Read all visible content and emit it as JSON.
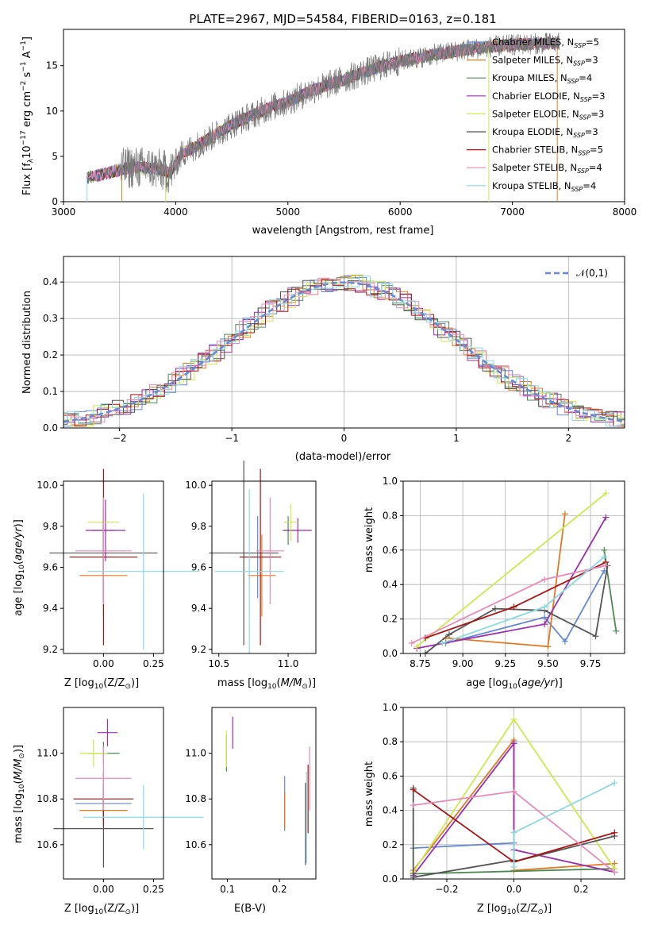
{
  "figure_title": "PLATE=2967, MJD=54584, FIBERID=0163, z=0.181",
  "colors": [
    "#6488d6",
    "#e07a22",
    "#4e8a54",
    "#9b2fae",
    "#cfe84e",
    "#555555",
    "#aa1414",
    "#e88ab8",
    "#8adae0"
  ],
  "chart_data": [
    {
      "id": "spectrum",
      "type": "line",
      "title": "PLATE=2967, MJD=54584, FIBERID=0163, z=0.181",
      "xlabel": "wavelength [Angstrom, rest frame]",
      "ylabel": "Flux [f_λ 10^-17 erg cm^-2 s^-1 A^-1]",
      "xlim": [
        3000,
        8000
      ],
      "ylim": [
        0,
        19
      ],
      "xticks": [
        "3000",
        "4000",
        "5000",
        "6000",
        "7000",
        "8000"
      ],
      "yticks": [
        "0",
        "5",
        "10",
        "15"
      ],
      "legend_position": "upper-right",
      "legend": [
        {
          "label": "Chabrier MILES, N",
          "sub": "SSP",
          "rest": "=5"
        },
        {
          "label": "Salpeter MILES, N",
          "sub": "SSP",
          "rest": "=3"
        },
        {
          "label": "Kroupa MILES, N",
          "sub": "SSP",
          "rest": "=4"
        },
        {
          "label": "Chabrier ELODIE, N",
          "sub": "SSP",
          "rest": "=3"
        },
        {
          "label": "Salpeter ELODIE, N",
          "sub": "SSP",
          "rest": "=3"
        },
        {
          "label": "Kroupa ELODIE, N",
          "sub": "SSP",
          "rest": "=3"
        },
        {
          "label": "Chabrier STELIB, N",
          "sub": "SSP",
          "rest": "=5"
        },
        {
          "label": "Salpeter STELIB, N",
          "sub": "SSP",
          "rest": "=4"
        },
        {
          "label": "Kroupa STELIB, N",
          "sub": "SSP",
          "rest": "=4"
        }
      ],
      "continuum_points": [
        [
          3200,
          2.6
        ],
        [
          3400,
          3.2
        ],
        [
          3600,
          3.8
        ],
        [
          3800,
          3.7
        ],
        [
          3950,
          3.2
        ],
        [
          4050,
          5.2
        ],
        [
          4300,
          7.0
        ],
        [
          4500,
          8.5
        ],
        [
          4800,
          10.2
        ],
        [
          5000,
          11.0
        ],
        [
          5200,
          12.2
        ],
        [
          5500,
          13.5
        ],
        [
          5800,
          14.8
        ],
        [
          6000,
          15.5
        ],
        [
          6300,
          16.2
        ],
        [
          6600,
          16.8
        ],
        [
          7000,
          17.3
        ],
        [
          7400,
          17.5
        ]
      ]
    },
    {
      "id": "residual-histogram",
      "type": "histogram",
      "xlabel": "(data-model)/error",
      "ylabel": "Normed distribution",
      "xlim": [
        -2.5,
        2.5
      ],
      "ylim": [
        0,
        0.47
      ],
      "xticks": [
        "−2",
        "−1",
        "0",
        "1",
        "2"
      ],
      "yticks": [
        "0.0",
        "0.1",
        "0.2",
        "0.3",
        "0.4"
      ],
      "legend": "𝒩(0,1)",
      "legend_position": "upper-right",
      "grid": true
    },
    {
      "id": "age-vs-Z",
      "type": "scatter",
      "xlabel": "Z [log10(Z/Z⊙)]",
      "ylabel": "age [log10(age/yr)]",
      "xlim": [
        -0.2,
        0.3
      ],
      "ylim": [
        9.18,
        10.02
      ],
      "xticks": [
        "0.00",
        "0.25"
      ],
      "yticks": [
        "9.2",
        "9.4",
        "9.6",
        "9.8",
        "10.0"
      ],
      "points": [
        {
          "x": 0.0,
          "y": 9.65,
          "xerr": 0.15,
          "yerr": 0.2
        },
        {
          "x": 0.0,
          "y": 9.56,
          "xerr": 0.12,
          "yerr": 0.2
        },
        {
          "x": 0.0,
          "y": 9.78,
          "xerr": 0.06,
          "yerr": 0.1
        },
        {
          "x": 0.01,
          "y": 9.78,
          "xerr": 0.1,
          "yerr": 0.15
        },
        {
          "x": 0.0,
          "y": 9.82,
          "xerr": 0.08,
          "yerr": 0.1
        },
        {
          "x": 0.0,
          "y": 9.67,
          "xerr": 0.27,
          "yerr": 0.23
        },
        {
          "x": 0.0,
          "y": 9.65,
          "xerr": 0.17,
          "yerr": 0.43
        },
        {
          "x": 0.0,
          "y": 9.68,
          "xerr": 0.14,
          "yerr": 0.26
        },
        {
          "x": 0.2,
          "y": 9.58,
          "xerr": 0.28,
          "yerr": 0.38
        }
      ]
    },
    {
      "id": "age-vs-mass",
      "type": "scatter",
      "xlabel": "mass [log10(M/M⊙)]",
      "ylabel": "",
      "xlim": [
        10.45,
        11.2
      ],
      "ylim": [
        9.18,
        10.02
      ],
      "xticks": [
        "10.5",
        "11.0"
      ],
      "yticks": [
        "9.2",
        "9.4",
        "9.6",
        "9.8",
        "10.0"
      ],
      "points": [
        {
          "x": 10.78,
          "y": 9.65,
          "xerr": 0.12,
          "yerr": 0.2
        },
        {
          "x": 10.81,
          "y": 9.56,
          "xerr": 0.1,
          "yerr": 0.2
        },
        {
          "x": 11.0,
          "y": 9.78,
          "xerr": 0.04,
          "yerr": 0.07
        },
        {
          "x": 11.07,
          "y": 9.78,
          "xerr": 0.1,
          "yerr": 0.06
        },
        {
          "x": 11.02,
          "y": 9.82,
          "xerr": 0.05,
          "yerr": 0.09
        },
        {
          "x": 10.68,
          "y": 9.67,
          "xerr": 0.25,
          "yerr": 0.45
        },
        {
          "x": 10.8,
          "y": 9.65,
          "xerr": 0.15,
          "yerr": 0.43
        },
        {
          "x": 10.87,
          "y": 9.68,
          "xerr": 0.1,
          "yerr": 0.26
        },
        {
          "x": 10.72,
          "y": 9.58,
          "xerr": 0.25,
          "yerr": 0.4
        }
      ]
    },
    {
      "id": "mass-weight-vs-age",
      "type": "line",
      "xlabel": "age [log10(age/yr)]",
      "ylabel": "mass weight",
      "xlim": [
        8.65,
        9.95
      ],
      "ylim": [
        0,
        1.0
      ],
      "xticks": [
        "8.75",
        "9.00",
        "9.25",
        "9.50",
        "9.75"
      ],
      "yticks": [
        "0.0",
        "0.2",
        "0.4",
        "0.6",
        "0.8",
        "1.0"
      ],
      "grid": true,
      "series": [
        {
          "x": [
            8.9,
            9.48,
            9.6,
            9.83
          ],
          "y": [
            0.06,
            0.21,
            0.07,
            0.48
          ]
        },
        {
          "x": [
            8.9,
            9.5,
            9.6
          ],
          "y": [
            0.09,
            0.04,
            0.81
          ]
        },
        {
          "x": [
            9.83,
            9.9
          ],
          "y": [
            0.6,
            0.13
          ]
        },
        {
          "x": [
            8.73,
            9.48,
            9.84
          ],
          "y": [
            0.03,
            0.17,
            0.79
          ]
        },
        {
          "x": [
            8.73,
            9.84
          ],
          "y": [
            0.04,
            0.93
          ]
        },
        {
          "x": [
            8.78,
            8.92,
            9.19,
            9.48,
            9.78,
            9.85
          ],
          "y": [
            0.0,
            0.11,
            0.26,
            0.25,
            0.1,
            0.51
          ]
        },
        {
          "x": [
            8.78,
            9.3,
            9.84
          ],
          "y": [
            0.09,
            0.27,
            0.53
          ]
        },
        {
          "x": [
            8.7,
            9.48,
            9.84
          ],
          "y": [
            0.06,
            0.43,
            0.51
          ]
        },
        {
          "x": [
            8.88,
            9.48,
            9.83
          ],
          "y": [
            0.06,
            0.27,
            0.56
          ]
        }
      ]
    },
    {
      "id": "mass-vs-Z",
      "type": "scatter",
      "xlabel": "Z [log10(Z/Z⊙)]",
      "ylabel": "mass [log10(M/M⊙)]",
      "xlim": [
        -0.2,
        0.3
      ],
      "ylim": [
        10.45,
        11.2
      ],
      "xticks": [
        "0.00",
        "0.25"
      ],
      "yticks": [
        "10.6",
        "10.8",
        "11.0"
      ],
      "points": [
        {
          "x": 0.0,
          "y": 10.78,
          "xerr": 0.14,
          "yerr": 0.08
        },
        {
          "x": 0.0,
          "y": 10.75,
          "xerr": 0.12,
          "yerr": 0.05
        },
        {
          "x": 0.0,
          "y": 11.0,
          "xerr": 0.08,
          "yerr": 0.05
        },
        {
          "x": 0.02,
          "y": 11.09,
          "xerr": 0.05,
          "yerr": 0.06
        },
        {
          "x": -0.05,
          "y": 11.0,
          "xerr": 0.07,
          "yerr": 0.06
        },
        {
          "x": 0.0,
          "y": 10.67,
          "xerr": 0.25,
          "yerr": 0.17
        },
        {
          "x": 0.0,
          "y": 10.8,
          "xerr": 0.15,
          "yerr": 0.12
        },
        {
          "x": 0.0,
          "y": 10.89,
          "xerr": 0.14,
          "yerr": 0.14
        },
        {
          "x": 0.2,
          "y": 10.72,
          "xerr": 0.3,
          "yerr": 0.14
        }
      ]
    },
    {
      "id": "mass-vs-EBV",
      "type": "scatter",
      "xlabel": "E(B-V)",
      "ylabel": "",
      "xlim": [
        0.07,
        0.27
      ],
      "ylim": [
        10.45,
        11.2
      ],
      "xticks": [
        "0.1",
        "0.2"
      ],
      "yticks": [
        "10.6",
        "10.8",
        "11.0"
      ],
      "points": [
        {
          "x": 0.21,
          "y": 10.78,
          "yerr": 0.12
        },
        {
          "x": 0.21,
          "y": 10.75,
          "yerr": 0.08
        },
        {
          "x": 0.098,
          "y": 11.0,
          "yerr": 0.08
        },
        {
          "x": 0.11,
          "y": 11.09,
          "yerr": 0.07
        },
        {
          "x": 0.098,
          "y": 11.02,
          "yerr": 0.08
        },
        {
          "x": 0.25,
          "y": 10.69,
          "yerr": 0.18
        },
        {
          "x": 0.255,
          "y": 10.8,
          "yerr": 0.15
        },
        {
          "x": 0.258,
          "y": 10.89,
          "yerr": 0.14
        },
        {
          "x": 0.252,
          "y": 10.72,
          "yerr": 0.2
        }
      ]
    },
    {
      "id": "mass-weight-vs-Z",
      "type": "line",
      "xlabel": "Z [log10(Z/Z⊙)]",
      "ylabel": "mass weight",
      "xlim": [
        -0.33,
        0.33
      ],
      "ylim": [
        0,
        1.0
      ],
      "xticks": [
        "−0.2",
        "0.0",
        "0.2"
      ],
      "yticks": [
        "0.0",
        "0.2",
        "0.4",
        "0.6",
        "0.8",
        "1.0"
      ],
      "grid": true,
      "series": [
        {
          "x": [
            -0.3,
            0.0,
            0.0
          ],
          "y": [
            0.18,
            0.21,
            0.8
          ]
        },
        {
          "x": [
            -0.3,
            0.0,
            0.0,
            0.3
          ],
          "y": [
            0.05,
            0.81,
            0.05,
            0.09
          ]
        },
        {
          "x": [
            -0.3,
            0.3
          ],
          "y": [
            0.03,
            0.06
          ]
        },
        {
          "x": [
            -0.3,
            0.0,
            0.0,
            0.3
          ],
          "y": [
            0.02,
            0.79,
            0.17,
            0.04
          ]
        },
        {
          "x": [
            -0.3,
            0.0,
            0.3
          ],
          "y": [
            0.04,
            0.93,
            0.06
          ]
        },
        {
          "x": [
            -0.3,
            -0.3,
            0.0,
            0.0,
            0.3
          ],
          "y": [
            0.53,
            0.01,
            0.11,
            0.1,
            0.25
          ]
        },
        {
          "x": [
            -0.3,
            0.0,
            0.3
          ],
          "y": [
            0.52,
            0.1,
            0.27
          ]
        },
        {
          "x": [
            -0.3,
            0.0,
            0.3
          ],
          "y": [
            0.43,
            0.51,
            0.04
          ]
        },
        {
          "x": [
            0.0,
            0.0,
            0.3
          ],
          "y": [
            0.07,
            0.27,
            0.56
          ]
        }
      ]
    }
  ]
}
